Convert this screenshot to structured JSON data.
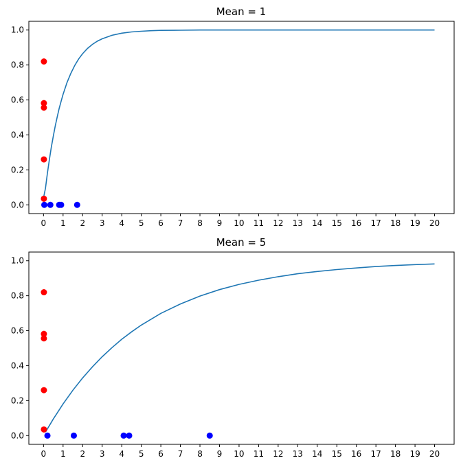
{
  "chart_data": [
    {
      "type": "line",
      "title": "Mean = 1",
      "xlabel": "",
      "ylabel": "",
      "xlim": [
        -0.75,
        21.0
      ],
      "ylim": [
        -0.05,
        1.05
      ],
      "xticks": [
        0,
        1,
        2,
        3,
        4,
        5,
        6,
        7,
        8,
        9,
        10,
        11,
        12,
        13,
        14,
        15,
        16,
        17,
        18,
        19,
        20
      ],
      "yticks": [
        "0.0",
        "0.2",
        "0.4",
        "0.6",
        "0.8",
        "1.0"
      ],
      "grid": false,
      "curve": {
        "color": "#1f77b4",
        "x": [
          0,
          0.1,
          0.2,
          0.3,
          0.4,
          0.5,
          0.6,
          0.7,
          0.8,
          0.9,
          1,
          1.2,
          1.4,
          1.6,
          1.8,
          2,
          2.25,
          2.5,
          2.75,
          3,
          3.5,
          4,
          4.5,
          5,
          5.5,
          6,
          7,
          8,
          9,
          10,
          12,
          14,
          16,
          18,
          20
        ],
        "y": [
          0.04,
          0.095,
          0.181,
          0.259,
          0.33,
          0.393,
          0.451,
          0.503,
          0.551,
          0.593,
          0.632,
          0.699,
          0.753,
          0.798,
          0.835,
          0.865,
          0.895,
          0.918,
          0.936,
          0.95,
          0.97,
          0.982,
          0.989,
          0.993,
          0.996,
          0.998,
          0.999,
          1.0,
          1.0,
          1.0,
          1.0,
          1.0,
          1.0,
          1.0,
          1.0
        ]
      },
      "red_points": {
        "color": "#ff0000",
        "x": [
          0.02,
          0.02,
          0.02,
          0.02,
          0.02
        ],
        "y": [
          0.82,
          0.582,
          0.556,
          0.26,
          0.035
        ]
      },
      "blue_points": {
        "color": "#0000ff",
        "x": [
          0.04,
          0.35,
          0.8,
          0.9,
          1.72
        ],
        "y": [
          0,
          0,
          0,
          0,
          0
        ]
      }
    },
    {
      "type": "line",
      "title": "Mean = 5",
      "xlabel": "",
      "ylabel": "",
      "xlim": [
        -0.75,
        21.0
      ],
      "ylim": [
        -0.05,
        1.05
      ],
      "xticks": [
        0,
        1,
        2,
        3,
        4,
        5,
        6,
        7,
        8,
        9,
        10,
        11,
        12,
        13,
        14,
        15,
        16,
        17,
        18,
        19,
        20
      ],
      "yticks": [
        "0.0",
        "0.2",
        "0.4",
        "0.6",
        "0.8",
        "1.0"
      ],
      "grid": false,
      "curve": {
        "color": "#1f77b4",
        "x": [
          0.1,
          0.5,
          1,
          1.5,
          2,
          2.5,
          3,
          3.5,
          4,
          4.5,
          5,
          6,
          7,
          8,
          9,
          10,
          11,
          12,
          13,
          14,
          15,
          16,
          17,
          18,
          19,
          20
        ],
        "y": [
          0.02,
          0.095,
          0.181,
          0.259,
          0.33,
          0.393,
          0.451,
          0.503,
          0.551,
          0.593,
          0.632,
          0.699,
          0.753,
          0.798,
          0.835,
          0.865,
          0.889,
          0.909,
          0.926,
          0.939,
          0.95,
          0.959,
          0.967,
          0.973,
          0.978,
          0.982
        ]
      },
      "red_points": {
        "color": "#ff0000",
        "x": [
          0.02,
          0.02,
          0.02,
          0.02,
          0.02
        ],
        "y": [
          0.82,
          0.582,
          0.556,
          0.26,
          0.035
        ]
      },
      "blue_points": {
        "color": "#0000ff",
        "x": [
          0.2,
          1.55,
          4.1,
          4.38,
          8.5
        ],
        "y": [
          0,
          0,
          0,
          0,
          0
        ]
      }
    }
  ]
}
